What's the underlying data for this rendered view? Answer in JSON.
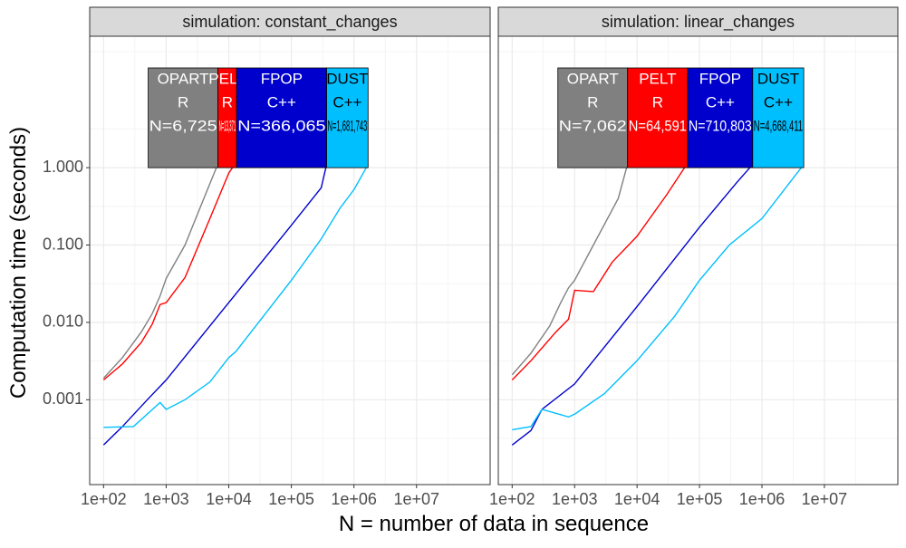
{
  "chart_data": {
    "type": "line",
    "xlabel": "N = number of data in sequence",
    "ylabel": "Computation time (seconds)",
    "x_scale": "log10",
    "y_scale": "log10",
    "xlim": [
      60,
      150000000
    ],
    "ylim": [
      8e-05,
      50
    ],
    "x_ticks": [
      {
        "value": 100,
        "label": "1e+02"
      },
      {
        "value": 1000,
        "label": "1e+03"
      },
      {
        "value": 10000,
        "label": "1e+04"
      },
      {
        "value": 100000,
        "label": "1e+05"
      },
      {
        "value": 1000000,
        "label": "1e+06"
      },
      {
        "value": 10000000,
        "label": "1e+07"
      }
    ],
    "y_ticks": [
      {
        "value": 0.001,
        "label": "0.001"
      },
      {
        "value": 0.01,
        "label": "0.010"
      },
      {
        "value": 0.1,
        "label": "0.100"
      },
      {
        "value": 1,
        "label": "1.000"
      }
    ],
    "grid": true,
    "colors": {
      "OPART": "#808080",
      "PELT": "#ff0000",
      "FPOP": "#0000cd",
      "DUST": "#00bfff"
    },
    "panels": [
      {
        "strip": "simulation: constant_changes",
        "boxes": [
          {
            "algo": "OPART",
            "language": "R",
            "max_n": "N=6,725",
            "text_color": "#ffffff"
          },
          {
            "algo": "PELT",
            "language": "R",
            "max_n": "N=13,371",
            "text_color": "#ffffff"
          },
          {
            "algo": "FPOP",
            "language": "C++",
            "max_n": "N=366,065",
            "text_color": "#ffffff"
          },
          {
            "algo": "DUST",
            "language": "C++",
            "max_n": "N=1,681,743",
            "text_color": "#000000"
          }
        ],
        "series": [
          {
            "name": "OPART",
            "points": [
              [
                100,
                0.0019
              ],
              [
                200,
                0.0035
              ],
              [
                400,
                0.0075
              ],
              [
                600,
                0.013
              ],
              [
                800,
                0.022
              ],
              [
                1000,
                0.037
              ],
              [
                2000,
                0.1
              ],
              [
                4000,
                0.4
              ],
              [
                6725,
                1.12
              ]
            ]
          },
          {
            "name": "PELT",
            "points": [
              [
                100,
                0.0018
              ],
              [
                200,
                0.0029
              ],
              [
                400,
                0.0055
              ],
              [
                600,
                0.0095
              ],
              [
                800,
                0.017
              ],
              [
                1000,
                0.018
              ],
              [
                2000,
                0.038
              ],
              [
                5000,
                0.22
              ],
              [
                10000,
                0.85
              ],
              [
                13371,
                1.2
              ]
            ]
          },
          {
            "name": "FPOP",
            "points": [
              [
                100,
                0.00026
              ],
              [
                200,
                0.00045
              ],
              [
                500,
                0.001
              ],
              [
                1000,
                0.0018
              ],
              [
                5000,
                0.009
              ],
              [
                10000,
                0.018
              ],
              [
                100000,
                0.18
              ],
              [
                300000,
                0.55
              ],
              [
                366065,
                1.1
              ]
            ]
          },
          {
            "name": "DUST",
            "points": [
              [
                100,
                0.00044
              ],
              [
                300,
                0.00045
              ],
              [
                800,
                0.00092
              ],
              [
                1000,
                0.00075
              ],
              [
                2000,
                0.001
              ],
              [
                5000,
                0.0017
              ],
              [
                10000,
                0.0035
              ],
              [
                13000,
                0.0042
              ],
              [
                100000,
                0.035
              ],
              [
                300000,
                0.12
              ],
              [
                600000,
                0.3
              ],
              [
                1000000,
                0.52
              ],
              [
                1681743,
                1.1
              ]
            ]
          }
        ]
      },
      {
        "strip": "simulation: linear_changes",
        "boxes": [
          {
            "algo": "OPART",
            "language": "R",
            "max_n": "N=7,062",
            "text_color": "#ffffff"
          },
          {
            "algo": "PELT",
            "language": "R",
            "max_n": "N=64,591",
            "text_color": "#ffffff"
          },
          {
            "algo": "FPOP",
            "language": "C++",
            "max_n": "N=710,803",
            "text_color": "#ffffff"
          },
          {
            "algo": "DUST",
            "language": "C++",
            "max_n": "N=4,668,411",
            "text_color": "#000000"
          }
        ],
        "series": [
          {
            "name": "OPART",
            "points": [
              [
                100,
                0.0021
              ],
              [
                200,
                0.004
              ],
              [
                400,
                0.009
              ],
              [
                600,
                0.018
              ],
              [
                800,
                0.028
              ],
              [
                1000,
                0.035
              ],
              [
                2000,
                0.1
              ],
              [
                5000,
                0.4
              ],
              [
                7062,
                1.12
              ]
            ]
          },
          {
            "name": "PELT",
            "points": [
              [
                100,
                0.0018
              ],
              [
                200,
                0.0032
              ],
              [
                500,
                0.0075
              ],
              [
                800,
                0.011
              ],
              [
                1000,
                0.026
              ],
              [
                2000,
                0.025
              ],
              [
                4000,
                0.06
              ],
              [
                10000,
                0.13
              ],
              [
                30000,
                0.45
              ],
              [
                64591,
                1.15
              ]
            ]
          },
          {
            "name": "FPOP",
            "points": [
              [
                100,
                0.00026
              ],
              [
                200,
                0.0004
              ],
              [
                300,
                0.00075
              ],
              [
                1000,
                0.0016
              ],
              [
                10000,
                0.016
              ],
              [
                100000,
                0.17
              ],
              [
                400000,
                0.65
              ],
              [
                710803,
                1.1
              ]
            ]
          },
          {
            "name": "DUST",
            "points": [
              [
                100,
                0.00041
              ],
              [
                200,
                0.00045
              ],
              [
                300,
                0.00075
              ],
              [
                800,
                0.0006
              ],
              [
                1000,
                0.00065
              ],
              [
                3000,
                0.0012
              ],
              [
                10000,
                0.0032
              ],
              [
                40000,
                0.012
              ],
              [
                100000,
                0.035
              ],
              [
                300000,
                0.1
              ],
              [
                1000000,
                0.22
              ],
              [
                4668411,
                1.1
              ]
            ]
          }
        ]
      }
    ]
  }
}
